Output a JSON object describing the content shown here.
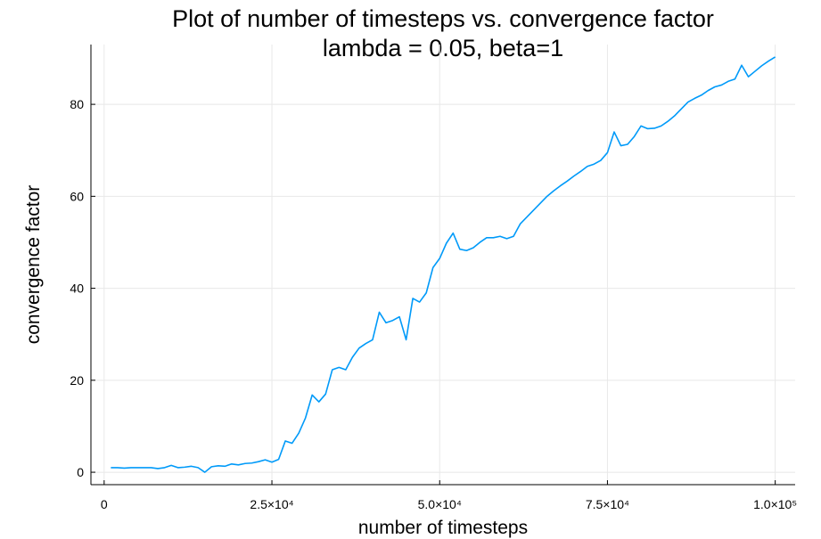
{
  "chart_data": {
    "type": "line",
    "title": "Plot of number of timesteps vs. convergence factor",
    "subtitle": "lambda = 0.05, beta=1",
    "x_label": "number of timesteps",
    "y_label": "convergence factor",
    "color": "#009af9",
    "grid": true,
    "xlim": [
      -1970,
      102970
    ],
    "ylim": [
      -2.7,
      93.0
    ],
    "xticks": [
      0,
      {
        "value": 25000,
        "label": "2.5×10⁴"
      },
      {
        "value": 50000,
        "label": "5.0×10⁴"
      },
      {
        "value": 75000,
        "label": "7.5×10⁴"
      },
      {
        "value": 100000,
        "label": "1.0×10⁵"
      }
    ],
    "yticks": [
      0,
      20,
      40,
      60,
      80
    ],
    "x": [
      1000,
      2000,
      3000,
      4000,
      5000,
      6000,
      7000,
      8000,
      9000,
      10000,
      11000,
      12000,
      13000,
      14000,
      15000,
      16000,
      17000,
      18000,
      19000,
      20000,
      21000,
      22000,
      23000,
      24000,
      25000,
      26000,
      27000,
      28000,
      29000,
      30000,
      31000,
      32000,
      33000,
      34000,
      35000,
      36000,
      37000,
      38000,
      39000,
      40000,
      41000,
      42000,
      43000,
      44000,
      45000,
      46000,
      47000,
      48000,
      49000,
      50000,
      51000,
      52000,
      53000,
      54000,
      55000,
      56000,
      57000,
      58000,
      59000,
      60000,
      61000,
      62000,
      63000,
      64000,
      65000,
      66000,
      67000,
      68000,
      69000,
      70000,
      71000,
      72000,
      73000,
      74000,
      75000,
      76000,
      77000,
      78000,
      79000,
      80000,
      81000,
      82000,
      83000,
      84000,
      85000,
      86000,
      87000,
      88000,
      89000,
      90000,
      91000,
      92000,
      93000,
      94000,
      95000,
      96000,
      97000,
      98000,
      99000,
      100000
    ],
    "values": [
      1.0,
      1.0,
      0.9,
      1.0,
      1.0,
      1.0,
      1.0,
      0.8,
      1.0,
      1.5,
      1.0,
      1.1,
      1.3,
      1.0,
      0.0,
      1.2,
      1.4,
      1.3,
      1.8,
      1.6,
      1.9,
      2.0,
      2.3,
      2.7,
      2.2,
      2.8,
      6.8,
      6.3,
      8.5,
      11.8,
      16.8,
      15.3,
      17.0,
      22.3,
      22.8,
      22.3,
      25.0,
      27.0,
      28.0,
      28.8,
      34.8,
      32.5,
      33.0,
      33.8,
      28.8,
      37.8,
      37.0,
      39.0,
      44.5,
      46.5,
      49.8,
      52.0,
      48.5,
      48.2,
      48.8,
      50.0,
      51.0,
      51.0,
      51.3,
      50.8,
      51.3,
      54.0,
      55.5,
      57.0,
      58.5,
      60.0,
      61.2,
      62.3,
      63.3,
      64.4,
      65.4,
      66.5,
      67.0,
      67.8,
      69.5,
      74.0,
      71.0,
      71.3,
      73.0,
      75.3,
      74.7,
      74.8,
      75.3,
      76.3,
      77.5,
      79.0,
      80.5,
      81.3,
      82.0,
      83.0,
      83.8,
      84.2,
      85.0,
      85.5,
      88.5,
      86.0,
      87.2,
      88.4,
      89.4,
      90.3
    ]
  }
}
